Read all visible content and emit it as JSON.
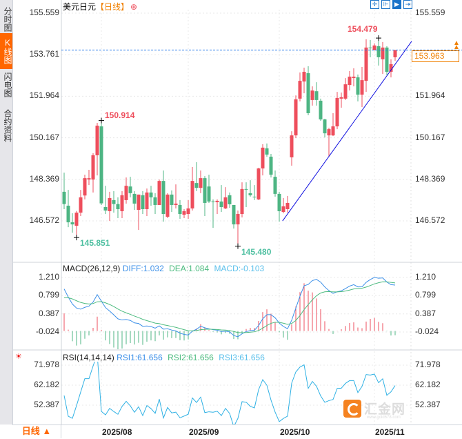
{
  "sidebar": {
    "tabs": [
      {
        "label": "分时图",
        "active": false
      },
      {
        "label": "K线图",
        "active": true
      },
      {
        "label": "闪电图",
        "active": false
      },
      {
        "label": "合约资料",
        "active": false
      }
    ]
  },
  "header": {
    "symbol": "美元日元",
    "period": "【日线】",
    "add_icon": "⊕"
  },
  "toolbar": {
    "icons": [
      "crosshair-icon",
      "range-icon",
      "play-icon",
      "exit-icon"
    ]
  },
  "colors": {
    "up": "#ee4e5c",
    "down": "#4db583",
    "diff": "#3b8fe8",
    "dea": "#4cbb7f",
    "macd": "#5bc0eb",
    "rsi": "#2fb1e4",
    "trend": "#1010e0",
    "last": "#f08000"
  },
  "bottom": {
    "filter_label": "日线 ▲"
  },
  "watermark": {
    "text": "汇金网",
    "sub": "www.gold678.com"
  },
  "chart_data": [
    {
      "type": "candlestick",
      "title": "美元日元 日线",
      "y_ticks": [
        155.559,
        153.761,
        151.964,
        150.167,
        148.369,
        146.572
      ],
      "ylim": [
        146.572,
        155.559
      ],
      "last_price": "153.963",
      "x_ticks": [
        {
          "index": 9,
          "label": "2025/08"
        },
        {
          "index": 30,
          "label": "2025/09"
        },
        {
          "index": 52,
          "label": "2025/10"
        },
        {
          "index": 75,
          "label": "2025/11"
        }
      ],
      "annotations": [
        {
          "index": 9,
          "value": 150.914,
          "label": "150.914",
          "kind": "high"
        },
        {
          "index": 3,
          "value": 145.851,
          "label": "145.851",
          "kind": "low"
        },
        {
          "index": 42,
          "value": 145.48,
          "label": "145.480",
          "kind": "low"
        },
        {
          "index": 76,
          "value": 154.479,
          "label": "154.479",
          "kind": "high"
        }
      ],
      "trendline": [
        [
          52.8,
          146.57
        ],
        [
          84,
          154.34
        ]
      ],
      "ohlc": [
        [
          147.83,
          148.66,
          147.08,
          147.3
        ],
        [
          147.23,
          147.91,
          146.3,
          146.51
        ],
        [
          146.51,
          146.9,
          146.06,
          146.42
        ],
        [
          146.36,
          147.0,
          145.851,
          146.93
        ],
        [
          146.93,
          147.91,
          146.78,
          147.59
        ],
        [
          147.67,
          148.57,
          147.5,
          148.42
        ],
        [
          148.36,
          148.78,
          148.12,
          148.42
        ],
        [
          148.36,
          149.5,
          147.8,
          149.41
        ],
        [
          149.41,
          150.81,
          148.54,
          150.69
        ],
        [
          150.66,
          150.914,
          147.26,
          147.33
        ],
        [
          147.17,
          148.09,
          146.87,
          147.02
        ],
        [
          146.99,
          147.83,
          146.57,
          147.56
        ],
        [
          147.47,
          147.86,
          146.93,
          147.3
        ],
        [
          147.3,
          147.59,
          146.69,
          147.08
        ],
        [
          146.99,
          147.86,
          146.69,
          147.68
        ],
        [
          147.47,
          148.45,
          147.32,
          148.09
        ],
        [
          148.06,
          148.48,
          147.59,
          147.77
        ],
        [
          147.74,
          147.86,
          147.05,
          147.32
        ],
        [
          147.05,
          147.71,
          146.18,
          147.71
        ],
        [
          147.68,
          147.86,
          146.87,
          147.08
        ],
        [
          147.08,
          147.97,
          146.78,
          147.8
        ],
        [
          147.8,
          148.09,
          147.23,
          147.59
        ],
        [
          147.59,
          147.77,
          146.87,
          147.26
        ],
        [
          147.26,
          148.36,
          147.26,
          148.3
        ],
        [
          148.3,
          148.75,
          146.54,
          146.87
        ],
        [
          146.75,
          147.77,
          146.69,
          147.71
        ],
        [
          147.71,
          147.89,
          146.96,
          147.26
        ],
        [
          147.26,
          148.15,
          147.11,
          147.32
        ],
        [
          147.26,
          147.47,
          146.66,
          146.87
        ],
        [
          146.84,
          147.08,
          146.69,
          146.99
        ],
        [
          146.87,
          147.47,
          146.66,
          147.11
        ],
        [
          147.11,
          148.9,
          147.02,
          148.3
        ],
        [
          148.21,
          149.11,
          147.86,
          148.0
        ],
        [
          148.0,
          148.75,
          147.77,
          148.42
        ],
        [
          148.42,
          148.51,
          146.78,
          147.35
        ],
        [
          148.06,
          148.57,
          147.35,
          147.41
        ],
        [
          147.41,
          147.5,
          146.27,
          147.38
        ],
        [
          147.38,
          147.5,
          146.87,
          147.44
        ],
        [
          147.41,
          148.12,
          146.96,
          147.17
        ],
        [
          147.11,
          148.03,
          147.08,
          147.59
        ],
        [
          147.68,
          147.8,
          147.14,
          147.29
        ],
        [
          147.26,
          147.26,
          146.24,
          146.42
        ],
        [
          146.42,
          147.02,
          145.48,
          146.87
        ],
        [
          146.87,
          148.24,
          146.72,
          147.95
        ],
        [
          147.95,
          148.24,
          147.17,
          147.92
        ],
        [
          147.77,
          148.33,
          147.62,
          147.68
        ],
        [
          147.62,
          148.12,
          147.47,
          147.59
        ],
        [
          147.5,
          148.87,
          147.47,
          148.84
        ],
        [
          148.84,
          149.89,
          148.54,
          149.74
        ],
        [
          149.71,
          149.92,
          149.35,
          149.44
        ],
        [
          149.35,
          149.47,
          148.45,
          148.57
        ],
        [
          148.48,
          148.75,
          147.62,
          147.74
        ],
        [
          147.74,
          147.83,
          146.54,
          146.99
        ],
        [
          146.96,
          147.56,
          146.9,
          147.2
        ],
        [
          147.08,
          147.65,
          146.93,
          147.35
        ],
        [
          149.32,
          150.45,
          148.96,
          150.27
        ],
        [
          150.27,
          152.0,
          150.15,
          151.83
        ],
        [
          151.86,
          152.99,
          151.74,
          152.63
        ],
        [
          152.6,
          153.2,
          152.09,
          153.02
        ],
        [
          152.96,
          153.26,
          151.14,
          151.23
        ],
        [
          151.8,
          152.39,
          151.56,
          152.21
        ],
        [
          152.18,
          152.57,
          151.56,
          151.8
        ],
        [
          151.77,
          151.86,
          150.9,
          150.96
        ],
        [
          150.96,
          150.99,
          150.18,
          150.36
        ],
        [
          150.27,
          150.6,
          149.35,
          150.54
        ],
        [
          150.27,
          151.23,
          150.24,
          150.66
        ],
        [
          150.66,
          152.15,
          150.54,
          151.89
        ],
        [
          151.86,
          152.12,
          151.47,
          151.92
        ],
        [
          151.86,
          152.75,
          151.8,
          152.48
        ],
        [
          152.45,
          153.05,
          152.21,
          152.81
        ],
        [
          152.75,
          153.17,
          152.39,
          152.81
        ],
        [
          152.78,
          152.9,
          151.74,
          152.03
        ],
        [
          152.03,
          153.23,
          151.5,
          152.66
        ],
        [
          152.63,
          154.43,
          152.15,
          154.07
        ],
        [
          154.07,
          154.4,
          153.65,
          154.04
        ],
        [
          153.95,
          154.25,
          153.95,
          154.16
        ],
        [
          154.13,
          154.479,
          153.29,
          153.65
        ],
        [
          153.56,
          154.31,
          152.93,
          154.07
        ],
        [
          154.07,
          154.13,
          152.87,
          153.02
        ],
        [
          153.02,
          153.56,
          152.78,
          153.35
        ],
        [
          153.65,
          153.95,
          153.5,
          153.963
        ]
      ]
    },
    {
      "type": "line",
      "title": "MACD(26,12,9)",
      "legend": {
        "diff": "DIFF:1.032",
        "dea": "DEA:1.084",
        "macd": "MACD:-0.103"
      },
      "y_ticks": [
        1.21,
        0.799,
        0.387,
        -0.024
      ],
      "seed": {
        "diff": 0.95,
        "dea": 0.75
      }
    },
    {
      "type": "line",
      "title": "RSI(14,14,14)",
      "legend": {
        "rsi1": "RSI1:61.656",
        "rsi2": "RSI2:61.656",
        "rsi3": "RSI3:61.656"
      },
      "y_ticks": [
        71.978,
        62.182,
        52.387
      ],
      "seed": {
        "avg_gain": 0.16,
        "avg_loss": 0.12
      }
    }
  ]
}
